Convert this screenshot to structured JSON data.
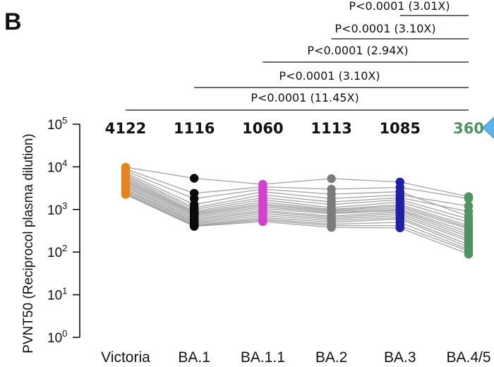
{
  "panel_label": "B",
  "colors": {
    "Victoria": "#e8821c",
    "BA.1": "#0a0a0a",
    "BA.1.1": "#d540d2",
    "BA.2": "#7c7c7c",
    "BA.3": "#1f1fa8",
    "BA.4/5": "#4e9360",
    "pair_line": "#a3a3a3",
    "gmt_default": "#111111",
    "gmt_highlight": "#4e9360",
    "arrow": "#5ab4e6"
  },
  "chart_data": {
    "type": "scatter",
    "ylabel": "PVNT50 (Reciprocol plasma dilution)",
    "ylim": [
      1,
      100000
    ],
    "log_scale": true,
    "y_ticks": [
      {
        "base": "10",
        "exp": "0"
      },
      {
        "base": "10",
        "exp": "1"
      },
      {
        "base": "10",
        "exp": "2"
      },
      {
        "base": "10",
        "exp": "3"
      },
      {
        "base": "10",
        "exp": "4"
      },
      {
        "base": "10",
        "exp": "5"
      }
    ],
    "categories": [
      "Victoria",
      "BA.1",
      "BA.1.1",
      "BA.2",
      "BA.3",
      "BA.4/5"
    ],
    "gmt": [
      "4122",
      "1116",
      "1060",
      "1113",
      "1085",
      "360"
    ],
    "comparisons": [
      {
        "label": "P<0.0001 (11.45X)",
        "from": "Victoria",
        "to": "BA.4/5"
      },
      {
        "label": "P<0.0001 (3.10X)",
        "from": "BA.1",
        "to": "BA.4/5"
      },
      {
        "label": "P<0.0001 (2.94X)",
        "from": "BA.1.1",
        "to": "BA.4/5"
      },
      {
        "label": "P<0.0001 (3.10X)",
        "from": "BA.2",
        "to": "BA.4/5"
      },
      {
        "label": "P<0.0001 (3.01X)",
        "from": "BA.3",
        "to": "BA.4/5"
      }
    ],
    "subjects": [
      [
        9800,
        5400,
        3900,
        5300,
        4400,
        2000
      ],
      [
        8900,
        2400,
        3400,
        3000,
        3300,
        1800
      ],
      [
        8000,
        1800,
        3000,
        2300,
        2600,
        700
      ],
      [
        7200,
        1300,
        2600,
        1800,
        2200,
        1200
      ],
      [
        6600,
        1100,
        2200,
        1500,
        1900,
        900
      ],
      [
        6100,
        1000,
        1900,
        1300,
        1700,
        600
      ],
      [
        5600,
        900,
        1700,
        1100,
        1500,
        500
      ],
      [
        5200,
        850,
        1500,
        1000,
        1300,
        420
      ],
      [
        4800,
        800,
        1350,
        950,
        1200,
        380
      ],
      [
        4500,
        750,
        1250,
        900,
        1100,
        350
      ],
      [
        4200,
        700,
        1150,
        850,
        1000,
        300
      ],
      [
        3900,
        650,
        1050,
        800,
        950,
        260
      ],
      [
        3600,
        600,
        950,
        700,
        880,
        230
      ],
      [
        3400,
        560,
        880,
        650,
        800,
        200
      ],
      [
        3100,
        520,
        800,
        600,
        720,
        180
      ],
      [
        2900,
        490,
        720,
        550,
        650,
        150
      ],
      [
        2700,
        460,
        650,
        500,
        600,
        130
      ],
      [
        2500,
        430,
        600,
        450,
        500,
        115
      ],
      [
        2350,
        410,
        560,
        420,
        420,
        105
      ],
      [
        2250,
        400,
        520,
        380,
        370,
        90
      ]
    ]
  }
}
